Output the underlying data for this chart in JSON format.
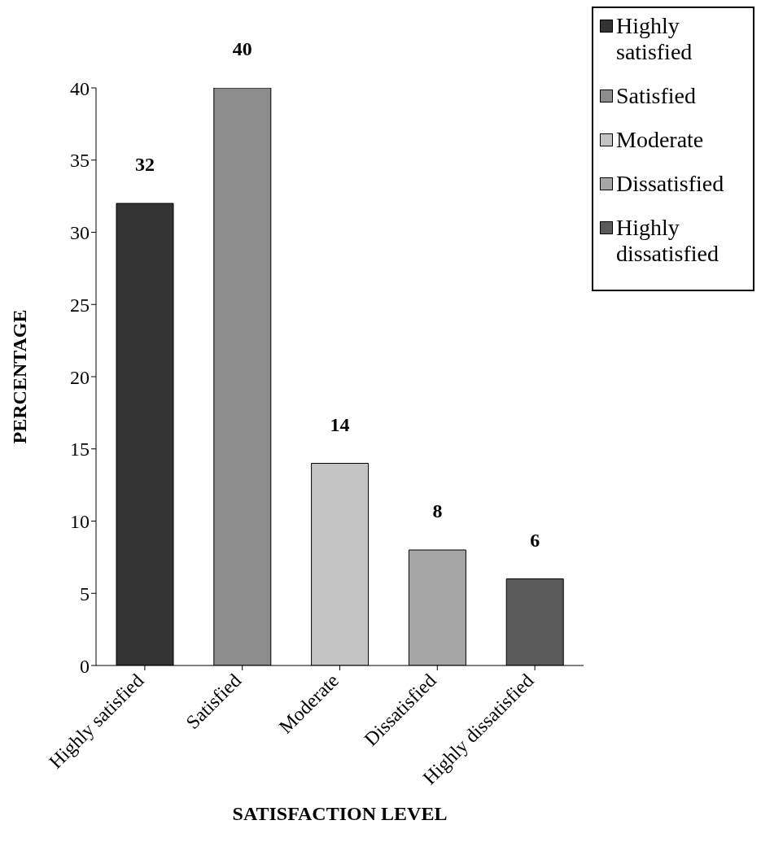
{
  "chart_data": {
    "type": "bar",
    "xlabel": "SATISFACTION LEVEL",
    "ylabel": "PERCENTAGE",
    "categories": [
      "Highly satisfied",
      "Satisfied",
      "Moderate",
      "Dissatisfied",
      "Highly dissatisfied"
    ],
    "stacked": true,
    "series": [
      {
        "name": "Highly satisfied",
        "color": "#333333",
        "values": [
          32,
          null,
          null,
          null,
          null
        ]
      },
      {
        "name": "Satisfied",
        "color": "#8c8c8c",
        "values": [
          null,
          40,
          null,
          null,
          null
        ]
      },
      {
        "name": "Moderate",
        "color": "#c4c4c4",
        "values": [
          null,
          null,
          14,
          null,
          null
        ]
      },
      {
        "name": "Dissatisfied",
        "color": "#a6a6a6",
        "values": [
          null,
          null,
          null,
          8,
          null
        ]
      },
      {
        "name": "Highly dissatisfied",
        "color": "#5a5a5a",
        "values": [
          null,
          null,
          null,
          null,
          6
        ]
      }
    ],
    "ylim": [
      0,
      40
    ],
    "yticks": [
      0,
      5,
      10,
      15,
      20,
      25,
      30,
      35,
      40
    ],
    "data_labels": true,
    "grid": false,
    "legend": "top right"
  }
}
